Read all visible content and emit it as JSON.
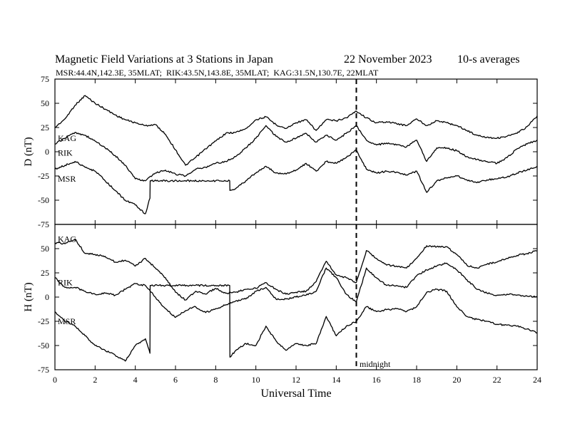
{
  "header": {
    "title": "Magnetic Field Variations at 3 Stations in Japan",
    "date": "22 November 2023",
    "averaging": "10-s averages",
    "stations_line": "MSR:44.4N,142.3E, 35MLAT;  RIK:43.5N,143.8E, 35MLAT;  KAG:31.5N,130.7E, 22MLAT"
  },
  "annotation": {
    "midnight": "midnight"
  },
  "colors": {
    "line": "#000000",
    "background": "#ffffff"
  },
  "chart_data": [
    {
      "type": "line",
      "panel": "top",
      "ylabel": "D (nT)",
      "xlabel": "",
      "xlim": [
        0,
        24
      ],
      "ylim": [
        -75,
        75
      ],
      "yticks": [
        75,
        50,
        25,
        0,
        -25,
        -50,
        -75
      ],
      "xticks": [
        0,
        2,
        4,
        6,
        8,
        10,
        12,
        14,
        16,
        18,
        20,
        22,
        24
      ],
      "vline_x": 15,
      "series": [
        {
          "name": "KAG",
          "label_y": 14,
          "x": [
            0,
            0.5,
            1,
            1.5,
            2,
            2.5,
            3,
            3.5,
            4,
            4.5,
            5,
            5.5,
            6,
            6.5,
            7,
            7.5,
            8,
            8.5,
            9,
            9.5,
            10,
            10.5,
            11,
            11.5,
            12,
            12.5,
            13,
            13.5,
            14,
            14.5,
            15,
            15.5,
            16,
            16.5,
            17,
            17.5,
            18,
            18.5,
            19,
            19.5,
            20,
            20.5,
            21,
            21.5,
            22,
            22.5,
            23,
            23.5,
            24
          ],
          "values": [
            25,
            34,
            48,
            58,
            50,
            44,
            38,
            33,
            30,
            27,
            28,
            18,
            2,
            -14,
            -6,
            3,
            11,
            19,
            20,
            24,
            33,
            36,
            28,
            24,
            30,
            33,
            22,
            33,
            32,
            35,
            42,
            35,
            30,
            31,
            29,
            27,
            34,
            27,
            32,
            30,
            27,
            22,
            17,
            15,
            14,
            16,
            19,
            26,
            37
          ]
        },
        {
          "name": "RIK",
          "label_y": -1,
          "x": [
            0,
            0.5,
            1,
            1.5,
            2,
            2.5,
            3,
            3.5,
            4,
            4.5,
            5,
            5.5,
            6,
            6.5,
            7,
            7.5,
            8,
            8.5,
            9,
            9.5,
            10,
            10.5,
            11,
            11.5,
            12,
            12.5,
            13,
            13.5,
            14,
            14.5,
            15,
            15.5,
            16,
            16.5,
            17,
            17.5,
            18,
            18.5,
            19,
            19.5,
            20,
            20.5,
            21,
            21.5,
            22,
            22.5,
            23,
            23.5,
            24
          ],
          "values": [
            8,
            14,
            20,
            17,
            11,
            4,
            -4,
            -14,
            -28,
            -30,
            -22,
            -19,
            -23,
            -25,
            -18,
            -16,
            -12,
            -10,
            -5,
            4,
            14,
            27,
            16,
            10,
            14,
            19,
            10,
            17,
            12,
            19,
            27,
            12,
            7,
            9,
            7,
            5,
            12,
            -10,
            4,
            4,
            1,
            -5,
            -8,
            -10,
            -12,
            -6,
            3,
            8,
            12
          ]
        },
        {
          "name": "MSR",
          "label_y": -28,
          "x": [
            0,
            0.5,
            1,
            1.5,
            2,
            2.5,
            3,
            3.5,
            4,
            4.5,
            4.73,
            4.74,
            8.7,
            8.71,
            9,
            9.5,
            10,
            10.5,
            11,
            11.5,
            12,
            12.5,
            13,
            13.5,
            14,
            14.5,
            15,
            15.5,
            16,
            16.5,
            17,
            17.5,
            18,
            18.5,
            19,
            19.5,
            20,
            20.5,
            21,
            21.5,
            22,
            22.5,
            23,
            23.5,
            24
          ],
          "values": [
            -18,
            -14,
            -10,
            -16,
            -20,
            -30,
            -40,
            -50,
            -55,
            -64,
            -48,
            -30,
            -30,
            -40,
            -38,
            -30,
            -22,
            -15,
            -22,
            -23,
            -19,
            -12,
            -20,
            -10,
            -12,
            -6,
            2,
            -18,
            -22,
            -20,
            -21,
            -24,
            -20,
            -42,
            -30,
            -27,
            -25,
            -29,
            -32,
            -29,
            -28,
            -26,
            -22,
            -19,
            -15
          ]
        }
      ]
    },
    {
      "type": "line",
      "panel": "bottom",
      "ylabel": "H (nT)",
      "xlabel": "Universal Time",
      "xlim": [
        0,
        24
      ],
      "ylim": [
        -75,
        75
      ],
      "yticks": [
        75,
        50,
        25,
        0,
        -25,
        -50,
        -75
      ],
      "xticks": [
        0,
        2,
        4,
        6,
        8,
        10,
        12,
        14,
        16,
        18,
        20,
        22,
        24
      ],
      "vline_x": 15,
      "series": [
        {
          "name": "KAG",
          "label_y": 60,
          "x": [
            0,
            0.5,
            1,
            1.5,
            2,
            2.5,
            3,
            3.5,
            4,
            4.5,
            5,
            5.5,
            6,
            6.5,
            7,
            7.5,
            8,
            8.5,
            9,
            9.5,
            10,
            10.5,
            11,
            11.5,
            12,
            12.5,
            13,
            13.5,
            14,
            14.5,
            15,
            15.5,
            16,
            16.5,
            17,
            17.5,
            18,
            18.5,
            19,
            19.5,
            20,
            20.5,
            21,
            21.5,
            22,
            22.5,
            23,
            23.5,
            24
          ],
          "values": [
            56,
            55,
            60,
            45,
            44,
            42,
            36,
            38,
            32,
            40,
            30,
            20,
            5,
            -3,
            6,
            3,
            9,
            4,
            5,
            8,
            9,
            15,
            8,
            3,
            5,
            6,
            16,
            37,
            23,
            20,
            15,
            48,
            40,
            33,
            32,
            30,
            40,
            53,
            52,
            52,
            44,
            33,
            30,
            34,
            36,
            40,
            43,
            45,
            48
          ]
        },
        {
          "name": "RIK",
          "label_y": 15,
          "x": [
            0,
            0.5,
            1,
            1.5,
            2,
            2.5,
            3,
            3.5,
            4,
            4.5,
            5,
            5.5,
            6,
            6.5,
            7,
            7.5,
            8,
            8.5,
            9,
            9.5,
            10,
            10.5,
            11,
            11.5,
            12,
            12.5,
            13,
            13.5,
            14,
            14.5,
            15,
            15.5,
            16,
            16.5,
            17,
            17.5,
            18,
            18.5,
            19,
            19.5,
            20,
            20.5,
            21,
            21.5,
            22,
            22.5,
            23,
            23.5,
            24
          ],
          "values": [
            20,
            10,
            10,
            6,
            3,
            4,
            2,
            8,
            14,
            12,
            0,
            -12,
            -21,
            -14,
            -10,
            -16,
            -12,
            -8,
            -4,
            -2,
            6,
            10,
            -2,
            -2,
            0,
            2,
            6,
            30,
            20,
            3,
            -5,
            30,
            20,
            12,
            12,
            10,
            22,
            28,
            32,
            35,
            28,
            18,
            8,
            4,
            2,
            3,
            2,
            1,
            0
          ]
        },
        {
          "name": "MSR",
          "label_y": -25,
          "x": [
            0,
            0.5,
            1,
            1.5,
            2,
            2.5,
            3,
            3.5,
            4,
            4.5,
            4.73,
            4.74,
            8.7,
            8.71,
            9,
            9.5,
            10,
            10.5,
            11,
            11.5,
            12,
            12.5,
            13,
            13.5,
            14,
            14.5,
            15,
            15.5,
            16,
            16.5,
            17,
            17.5,
            18,
            18.5,
            19,
            19.5,
            20,
            20.5,
            21,
            21.5,
            22,
            22.5,
            23,
            23.5,
            24
          ],
          "values": [
            -15,
            -25,
            -30,
            -40,
            -50,
            -55,
            -60,
            -66,
            -50,
            -43,
            -58,
            12,
            12,
            -62,
            -55,
            -48,
            -50,
            -30,
            -45,
            -55,
            -48,
            -50,
            -48,
            -20,
            -40,
            -30,
            -25,
            -10,
            -15,
            -13,
            -12,
            -15,
            -10,
            5,
            8,
            6,
            -10,
            -20,
            -23,
            -25,
            -28,
            -29,
            -30,
            -33,
            -37
          ]
        }
      ]
    }
  ]
}
